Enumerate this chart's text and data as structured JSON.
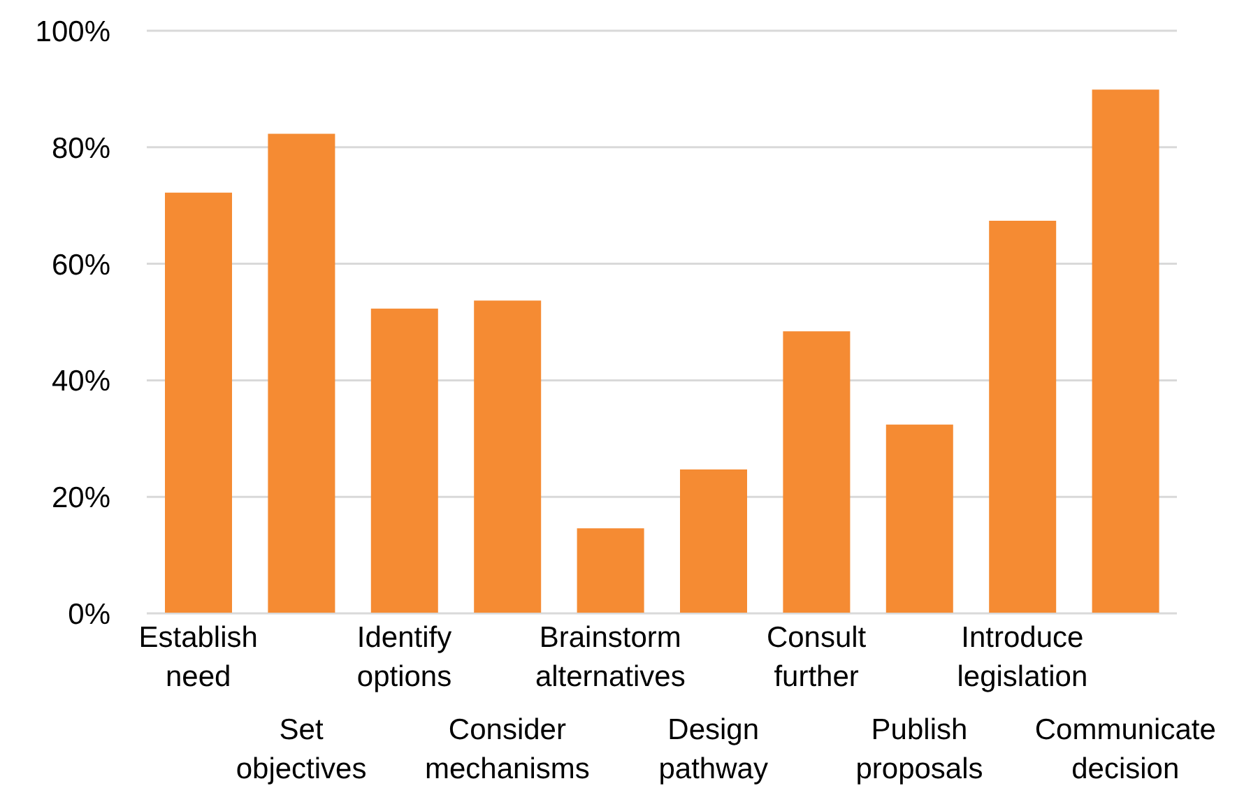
{
  "chart_data": {
    "type": "bar",
    "categories": [
      "Establish need",
      "Set objectives",
      "Identify options",
      "Consider mechanisms",
      "Brainstorm alternatives",
      "Design pathway",
      "Consult further",
      "Publish proposals",
      "Introduce legislation",
      "Communicate decision"
    ],
    "values": [
      72.2,
      82.3,
      52.3,
      53.7,
      14.6,
      24.7,
      48.4,
      32.4,
      67.4,
      89.9
    ],
    "color": "#f58b33",
    "ylim": [
      0,
      100
    ],
    "yticks": [
      {
        "value": 0,
        "label": "0%"
      },
      {
        "value": 20,
        "label": "20%"
      },
      {
        "value": 40,
        "label": "40%"
      },
      {
        "value": 60,
        "label": "60%"
      },
      {
        "value": 80,
        "label": "80%"
      },
      {
        "value": 100,
        "label": "100%"
      }
    ],
    "grid": "y"
  }
}
